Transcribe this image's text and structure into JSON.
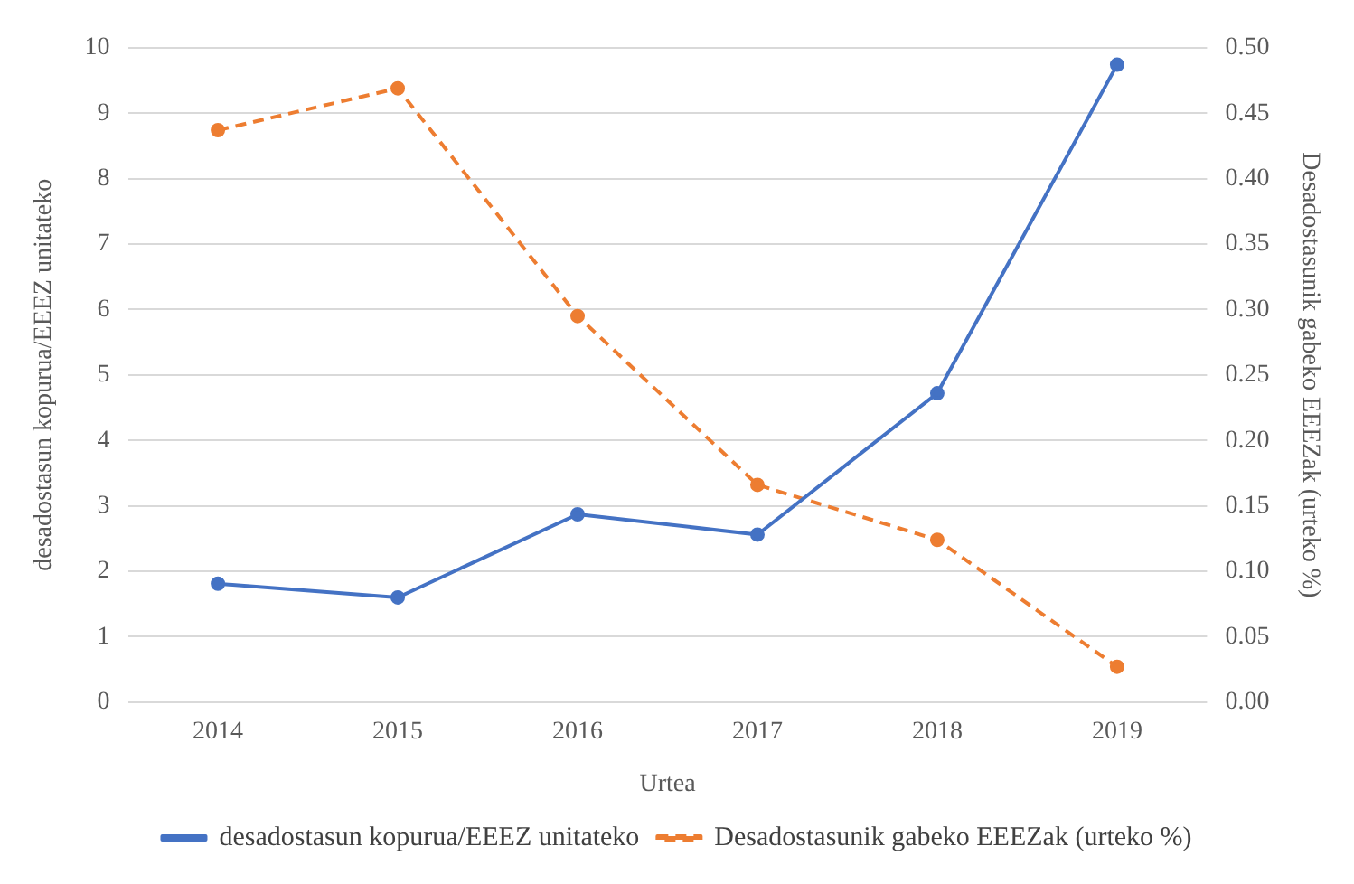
{
  "chart_data": {
    "type": "line",
    "xlabel": "Urtea",
    "ylabel": "desadostasun kopurua/EEEZ unitateko",
    "y2label": "Desadostasunik gabeko EEEZak (urteko %)",
    "categories": [
      "2014",
      "2015",
      "2016",
      "2017",
      "2018",
      "2019"
    ],
    "series": [
      {
        "name": "desadostasun kopurua/EEEZ unitateko",
        "color": "#4472c4",
        "values": [
          1.81,
          1.6,
          2.87,
          2.56,
          4.72,
          9.74
        ],
        "line_style": "solid"
      },
      {
        "name": "Desadostasunik gabeko EEEZak (urteko %)",
        "color": "#ed7d31",
        "values": [
          0.437,
          0.469,
          0.295,
          0.166,
          0.124,
          0.027
        ],
        "axis": "y2",
        "line_style": "dashed"
      }
    ],
    "ylim": [
      0,
      10
    ],
    "yticks": [
      0,
      1,
      2,
      3,
      4,
      5,
      6,
      7,
      8,
      9,
      10
    ],
    "y2lim": [
      0,
      0.5
    ],
    "y2ticks": [
      {
        "value": 0,
        "label": "0.00"
      },
      {
        "value": 0.05,
        "label": "0.05"
      },
      {
        "value": 0.1,
        "label": "0.10"
      },
      {
        "value": 0.15,
        "label": "0.15"
      },
      {
        "value": 0.2,
        "label": "0.20"
      },
      {
        "value": 0.25,
        "label": "0.25"
      },
      {
        "value": 0.3,
        "label": "0.30"
      },
      {
        "value": 0.35,
        "label": "0.35"
      },
      {
        "value": 0.4,
        "label": "0.40"
      },
      {
        "value": 0.45,
        "label": "0.45"
      },
      {
        "value": 0.5,
        "label": "0.50"
      }
    ],
    "grid": "y",
    "legend": "bottom",
    "marker": "circle"
  }
}
